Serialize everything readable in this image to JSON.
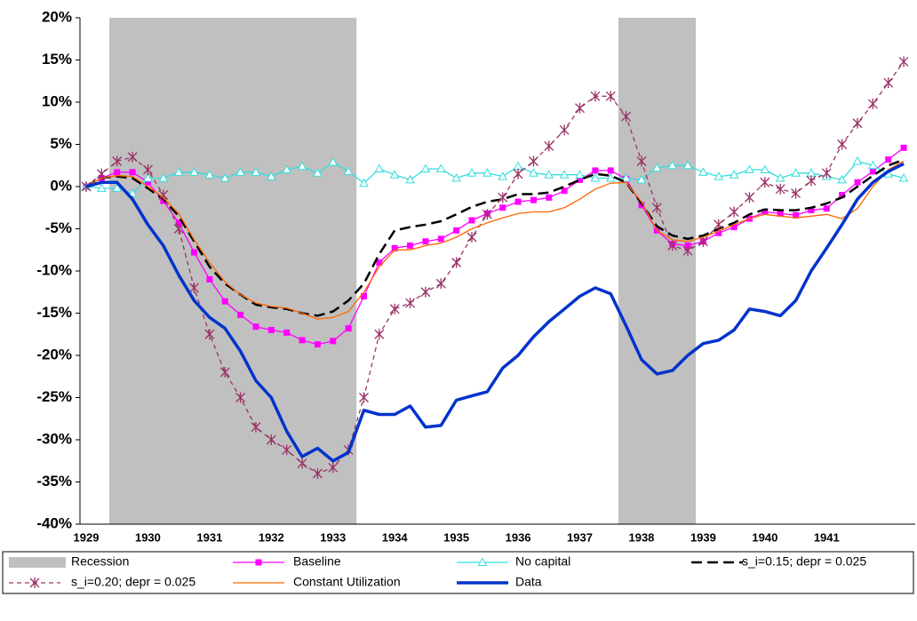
{
  "chart_data": {
    "type": "line",
    "categories": [
      "1929",
      null,
      null,
      null,
      "1930",
      null,
      null,
      null,
      "1931",
      null,
      null,
      null,
      "1932",
      null,
      null,
      null,
      "1933",
      null,
      null,
      null,
      "1934",
      null,
      null,
      null,
      "1935",
      null,
      null,
      null,
      "1936",
      null,
      null,
      null,
      "1937",
      null,
      null,
      null,
      "1938",
      null,
      null,
      null,
      "1939",
      null,
      null,
      null,
      "1940",
      null,
      null,
      null,
      "1941",
      null,
      null,
      null,
      null,
      null
    ],
    "ylim": [
      -40,
      20
    ],
    "yticks": [
      {
        "value": -40,
        "label": "-40%"
      },
      {
        "value": -35,
        "label": "-35%"
      },
      {
        "value": -30,
        "label": "-30%"
      },
      {
        "value": -25,
        "label": "-25%"
      },
      {
        "value": -20,
        "label": "-20%"
      },
      {
        "value": -15,
        "label": "-15%"
      },
      {
        "value": -10,
        "label": "-10%"
      },
      {
        "value": -5,
        "label": "-5%"
      },
      {
        "value": 0,
        "label": "0%"
      },
      {
        "value": 5,
        "label": "5%"
      },
      {
        "value": 10,
        "label": "10%"
      },
      {
        "value": 15,
        "label": "15%"
      },
      {
        "value": 20,
        "label": "20%"
      }
    ],
    "grid": false,
    "legend": "bottom",
    "series": [
      {
        "name": "Recession",
        "type": "bar",
        "color": "#c0c0c0",
        "values": [
          null,
          null,
          20,
          20,
          20,
          20,
          20,
          20,
          20,
          20,
          20,
          20,
          20,
          20,
          20,
          20,
          20,
          20,
          null,
          null,
          null,
          null,
          null,
          null,
          null,
          null,
          null,
          null,
          null,
          null,
          null,
          null,
          null,
          null,
          null,
          20,
          20,
          20,
          20,
          20,
          null,
          null,
          null,
          null,
          null,
          null,
          null,
          null,
          null,
          null,
          null,
          null,
          null,
          null
        ]
      },
      {
        "name": "Baseline",
        "type": "line",
        "color": "#ff00ff",
        "marker": "square",
        "line_style": "solid",
        "line_weight": "light",
        "values": [
          0,
          1,
          1.7,
          1.7,
          0.5,
          -1.7,
          -4.3,
          -7.8,
          -11,
          -13.6,
          -15.2,
          -16.6,
          -17,
          -17.3,
          -18.2,
          -18.7,
          -18.3,
          -16.8,
          -13,
          -9,
          -7.3,
          -7,
          -6.5,
          -6.2,
          -5.2,
          -4,
          -3.2,
          -2.5,
          -1.8,
          -1.6,
          -1.3,
          -0.5,
          0.8,
          1.9,
          1.9,
          0.9,
          -2.2,
          -5.2,
          -6.8,
          -7,
          -6.5,
          -5.5,
          -4.8,
          -3.8,
          -3,
          -3.2,
          -3.4,
          -2.8,
          -2.6,
          -1,
          0.5,
          1.8,
          3.2,
          4.6
        ]
      },
      {
        "name": "No capital",
        "type": "line",
        "color": "#33dddd",
        "marker": "triangle",
        "line_style": "solid",
        "line_weight": "light",
        "values": [
          0,
          -0.2,
          -0.2,
          -0.8,
          1,
          1,
          1.7,
          1.7,
          1.4,
          1,
          1.7,
          1.7,
          1.2,
          2,
          2.4,
          1.6,
          2.9,
          1.8,
          0.4,
          2.1,
          1.4,
          0.8,
          2.1,
          2.1,
          1,
          1.6,
          1.6,
          1.2,
          2.4,
          1.6,
          1.4,
          1.4,
          1.4,
          1,
          1,
          1,
          0.8,
          2.2,
          2.5,
          2.5,
          1.7,
          1.2,
          1.4,
          2,
          2,
          1,
          1.6,
          1.6,
          1.2,
          0.8,
          3,
          2.5,
          1.5,
          1
        ]
      },
      {
        "name": "s_i=0.15; depr = 0.025",
        "type": "line",
        "color": "#000000",
        "marker": "none",
        "line_style": "dashed",
        "line_weight": "medium",
        "values": [
          0,
          1,
          1.2,
          1,
          -0.2,
          -1.5,
          -3.5,
          -6.5,
          -9.5,
          -11.5,
          -12.8,
          -14,
          -14.3,
          -14.5,
          -15,
          -15.3,
          -14.8,
          -13.5,
          -11.5,
          -8,
          -5.2,
          -4.8,
          -4.5,
          -4.1,
          -3.3,
          -2.4,
          -1.8,
          -1.5,
          -0.9,
          -0.9,
          -0.7,
          0,
          0.8,
          1.5,
          1.3,
          0.5,
          -2,
          -4.7,
          -5.8,
          -6.2,
          -5.8,
          -5,
          -4.3,
          -3.3,
          -2.7,
          -2.8,
          -2.8,
          -2.5,
          -2,
          -1.3,
          0,
          1.3,
          2.5,
          3.2
        ]
      },
      {
        "name": "s_i=0.20; depr = 0.025",
        "type": "line",
        "color": "#993366",
        "marker": "star",
        "line_style": "dashed",
        "line_weight": "light",
        "values": [
          0,
          1.5,
          3,
          3.5,
          2,
          -1,
          -5,
          -12,
          -17.5,
          -22,
          -25,
          -28.5,
          -30,
          -31.2,
          -32.8,
          -34,
          -33.3,
          -31.2,
          -25,
          -17.5,
          -14.5,
          -13.8,
          -12.5,
          -11.5,
          -9,
          -6,
          -3.3,
          -1.3,
          1.5,
          3,
          4.8,
          6.7,
          9.3,
          10.7,
          10.7,
          8.3,
          3,
          -2.5,
          -7,
          -7.6,
          -6.5,
          -4.5,
          -3,
          -1.3,
          0.5,
          -0.3,
          -0.8,
          0.7,
          1.6,
          5,
          7.5,
          9.8,
          12.3,
          14.8
        ]
      },
      {
        "name": "Constant Utilization",
        "type": "line",
        "color": "#ff6600",
        "marker": "none",
        "line_style": "solid",
        "line_weight": "light",
        "values": [
          0,
          1,
          1.3,
          1.2,
          0,
          -1.3,
          -3.2,
          -6.3,
          -9,
          -11.3,
          -12.8,
          -13.8,
          -14.2,
          -14.4,
          -15,
          -15.7,
          -15.5,
          -14.8,
          -12.5,
          -9.5,
          -7.5,
          -7.5,
          -7,
          -6.7,
          -6,
          -5,
          -4.3,
          -3.7,
          -3.2,
          -3,
          -3,
          -2.5,
          -1.5,
          -0.3,
          0.4,
          0.5,
          -1.8,
          -5.2,
          -6.3,
          -6.5,
          -6,
          -5.3,
          -4.5,
          -3.8,
          -3.3,
          -3.5,
          -3.7,
          -3.5,
          -3.3,
          -3.8,
          -2.6,
          0,
          2,
          3
        ]
      },
      {
        "name": "Data",
        "type": "line",
        "color": "#0033cc",
        "marker": "none",
        "line_style": "solid",
        "line_weight": "heavy",
        "values": [
          0,
          0.5,
          0.5,
          -1.5,
          -4.5,
          -7,
          -10.5,
          -13.5,
          -15.5,
          -16.8,
          -19.5,
          -23,
          -25,
          -29,
          -32,
          -31,
          -32.5,
          -31.5,
          -26.5,
          -27,
          -27,
          -26,
          -28.5,
          -28.3,
          -25.3,
          -24.8,
          -24.3,
          -21.5,
          -20,
          -17.8,
          -16,
          -14.5,
          -13,
          -12,
          -12.7,
          -16.5,
          -20.5,
          -22.2,
          -21.8,
          -20,
          -18.6,
          -18.2,
          -17,
          -14.5,
          -14.8,
          -15.3,
          -13.5,
          -10,
          -7.3,
          -4.5,
          -1.5,
          0.5,
          1.8,
          2.7
        ]
      }
    ]
  }
}
